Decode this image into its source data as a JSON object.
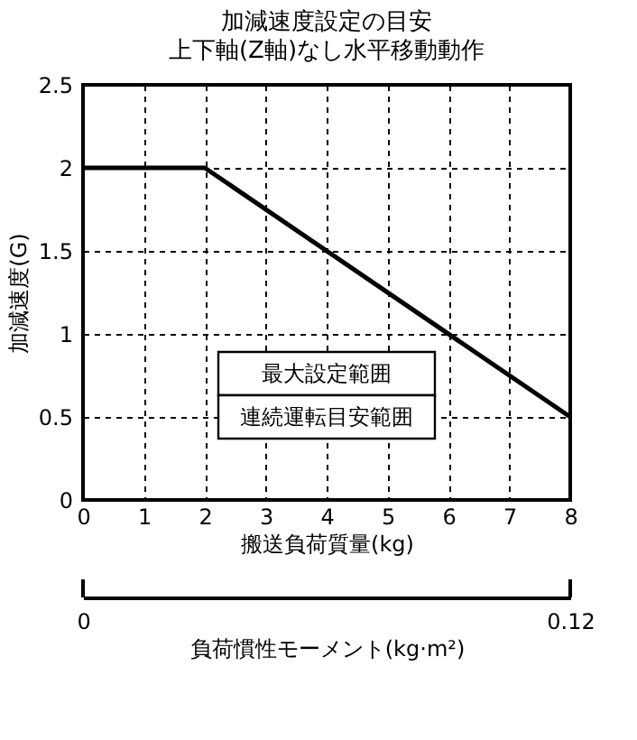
{
  "chart_data": {
    "type": "line",
    "title": "加減速度設定の目安",
    "subtitle": "上下軸(Z軸)なし水平移動動作",
    "xlabel": "搬送負荷質量(kg)",
    "ylabel": "加減速度(G)",
    "x2label": "負荷慣性モーメント(kg·m²)",
    "series": [
      {
        "color": "#000000",
        "x": [
          0,
          2,
          8
        ],
        "values": [
          2,
          2,
          0.5
        ]
      }
    ],
    "xlim": [
      0,
      8
    ],
    "xticks": [
      0,
      1,
      2,
      3,
      4,
      5,
      6,
      7,
      8
    ],
    "ylim": [
      0,
      2.5
    ],
    "yticks": [
      0,
      0.5,
      1,
      1.5,
      2,
      2.5
    ],
    "x2lim": [
      0,
      0.12
    ],
    "x2ticks": [
      0,
      0.12
    ],
    "annotations": [
      "最大設定範囲",
      "連続運転目安範囲"
    ],
    "grid": true,
    "marker": "none",
    "line_style": "solid"
  }
}
